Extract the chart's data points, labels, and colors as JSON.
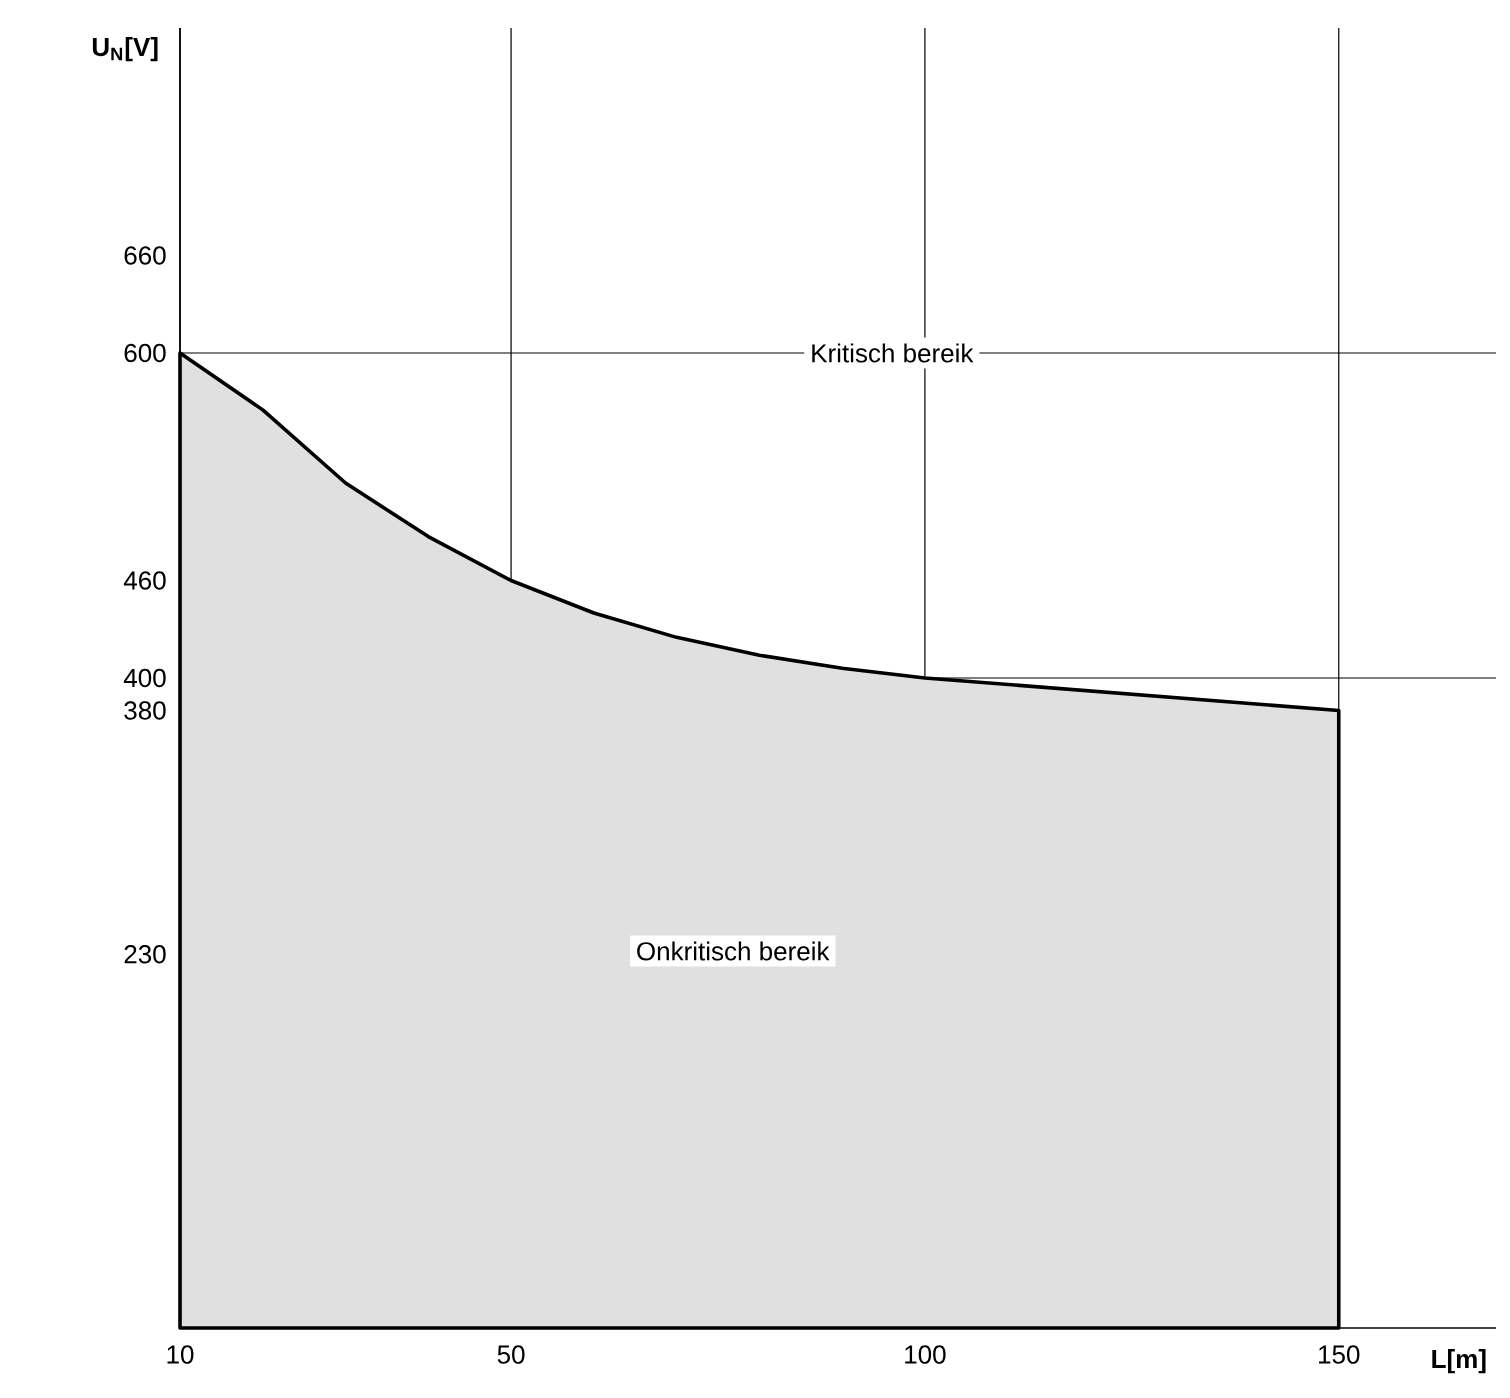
{
  "chart_data": {
    "type": "area",
    "xlabel": "L[m]",
    "ylabel": "U$_{N}$[V]",
    "x": [
      10,
      20,
      30,
      40,
      50,
      60,
      70,
      80,
      90,
      100,
      125,
      150,
      150
    ],
    "values": [
      600,
      565,
      520,
      487,
      460,
      440,
      425,
      414,
      406,
      400,
      390,
      380,
      0
    ],
    "color": "#000000",
    "xlim": [
      10,
      169
    ],
    "ylim": [
      0,
      800
    ],
    "xticks": [
      10,
      50,
      100,
      150
    ],
    "yticks": [
      230,
      380,
      400,
      460,
      600,
      660
    ],
    "grid": "x",
    "ref_lines": [
      {
        "axis": "y",
        "value": 600
      },
      {
        "axis": "y",
        "value": 400
      }
    ],
    "annotations": [
      {
        "text": "Kritisch bereik",
        "x": 96,
        "y": 600
      },
      "Onkritisch bereik"
    ]
  }
}
